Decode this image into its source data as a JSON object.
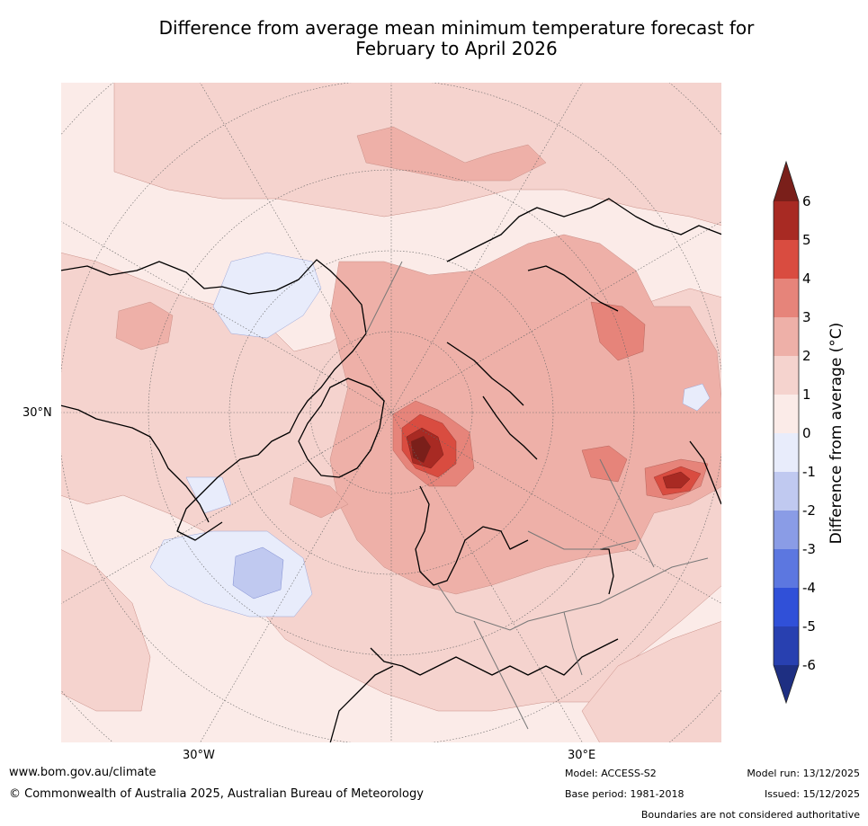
{
  "title": {
    "line1": "Difference from average mean minimum temperature forecast for",
    "line2": "February to April 2026"
  },
  "map": {
    "projection": "north-polar-stereographic",
    "lat_labels": [
      "30°N"
    ],
    "lon_labels": [
      "30°W",
      "30°E"
    ]
  },
  "colorbar": {
    "label": "Difference from average (°C)",
    "label_main": "Difference from average (",
    "label_unit": "°C",
    "label_close": ")",
    "ticks": [
      "6",
      "5",
      "4",
      "3",
      "2",
      "1",
      "0",
      "-1",
      "-2",
      "-3",
      "-4",
      "-5",
      "-6"
    ],
    "colors": {
      "above_6": "#7a1f1a",
      "5_to_6": "#a82a23",
      "4_to_5": "#d94c40",
      "3_to_4": "#e6847a",
      "2_to_3": "#eeb0a8",
      "1_to_2": "#f5d3ce",
      "0_to_1": "#fbebe8",
      "m1_to_0": "#e8ecfb",
      "m2_to_m1": "#c0c9f0",
      "m3_to_m2": "#8a9ce6",
      "m4_to_m3": "#5c77e0",
      "m5_to_m4": "#3050d8",
      "m6_to_m5": "#2840b0",
      "below_m6": "#1e2f82"
    }
  },
  "footer": {
    "website": "www.bom.gov.au/climate",
    "copyright": "© Commonwealth of Australia 2025, Australian Bureau of Meteorology",
    "model": "Model: ACCESS-S2",
    "base_period": "Base period: 1981-2018",
    "model_run": "Model run: 13/12/2025",
    "issued": "Issued: 15/12/2025",
    "disclaimer": "Boundaries are not considered authoritative"
  }
}
